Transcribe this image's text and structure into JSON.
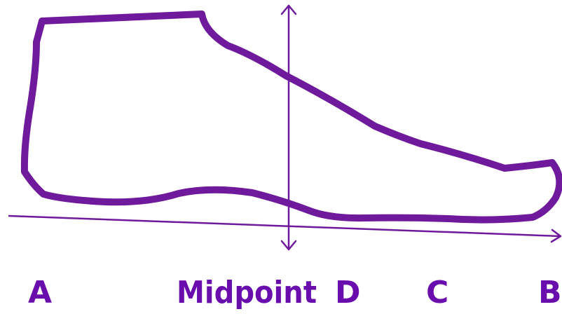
{
  "colors": {
    "outline": "#57BEC3",
    "axis": "#6F1A9C",
    "label": "#6A0DAD"
  },
  "labels": {
    "a": "A",
    "midpoint": "Midpoint",
    "d": "D",
    "c": "C",
    "b": "B"
  }
}
